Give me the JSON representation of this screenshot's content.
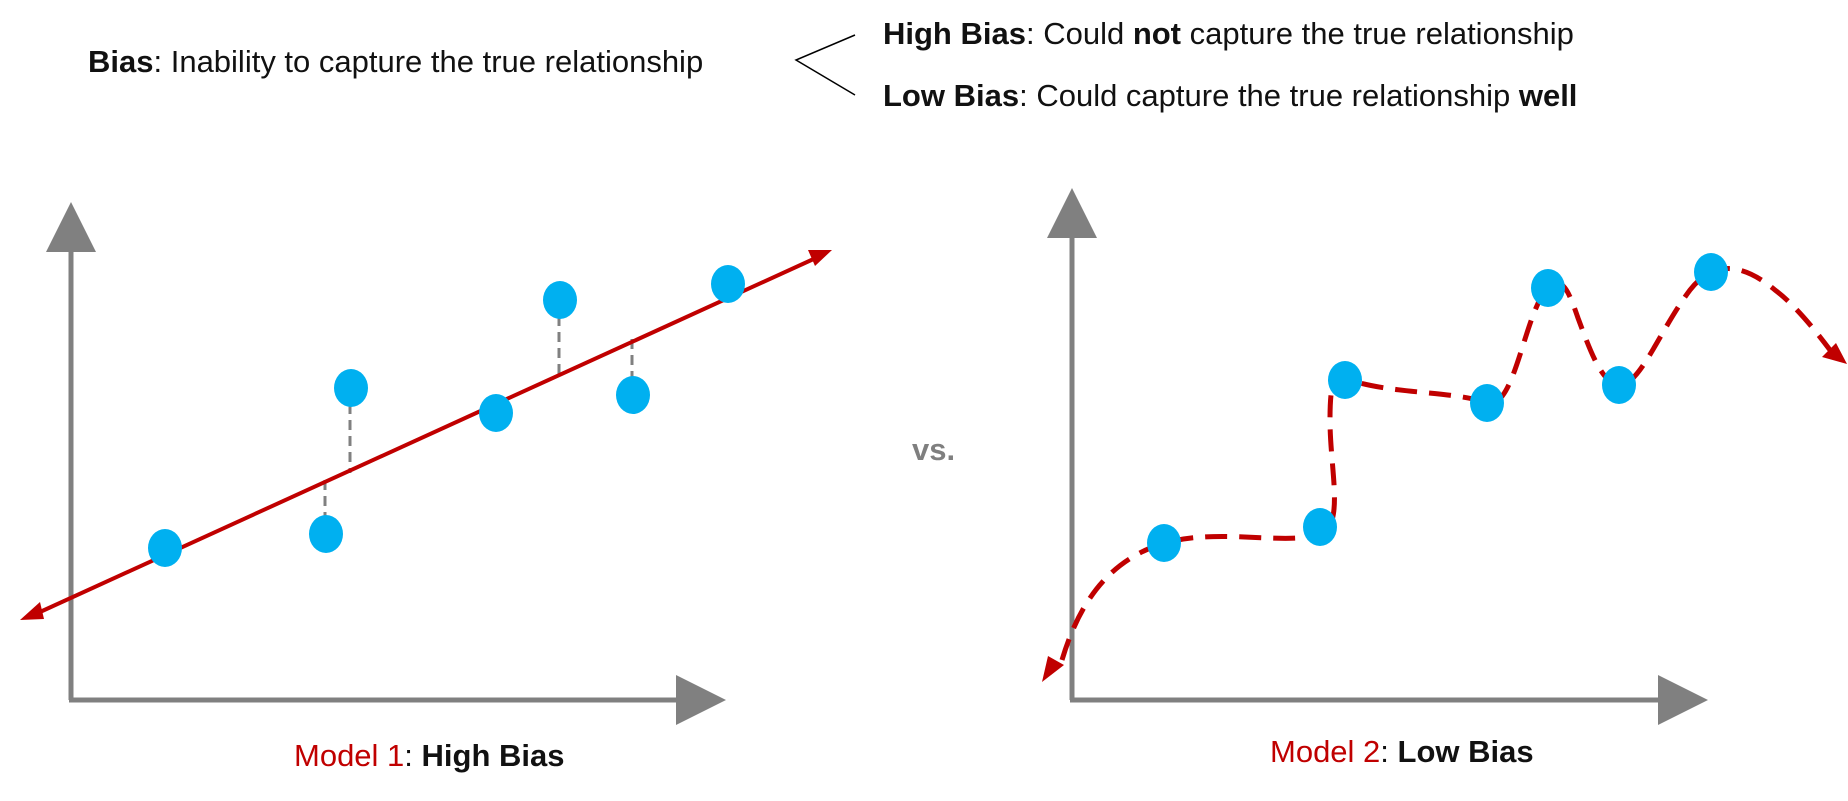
{
  "header": {
    "definition_term": "Bias",
    "definition_rest": ": Inability to capture the true relationship",
    "high": {
      "term": "High Bias",
      "pre": ": Could ",
      "emph": "not",
      "post": " capture the true relationship"
    },
    "low": {
      "term": "Low Bias",
      "pre": ": Could capture the true relationship ",
      "emph": "well"
    }
  },
  "vs_label": "vs.",
  "model1": {
    "name": "Model 1",
    "sep": ": ",
    "verdict": "High Bias"
  },
  "model2": {
    "name": "Model 2",
    "sep": ": ",
    "verdict": "Low Bias"
  },
  "colors": {
    "points": "#00b0f0",
    "fit_line": "#c00000",
    "axes": "#808080",
    "residuals": "#808080"
  }
}
